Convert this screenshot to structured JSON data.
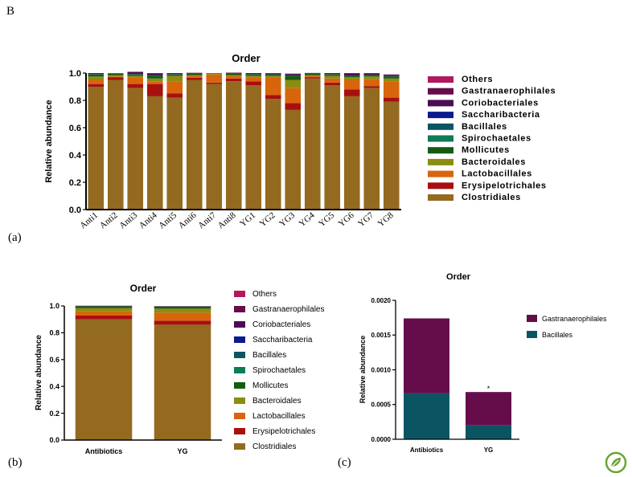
{
  "figure_label": "B",
  "panel_labels": [
    "(a)",
    "(b)",
    "(c)"
  ],
  "colors": {
    "Others": "#b0195f",
    "Gastranaerophilales": "#650d4b",
    "Coriobacteriales": "#4a0f52",
    "Saccharibacteria": "#0a1b8c",
    "Bacillales": "#0b5563",
    "Spirochaetales": "#0f7b57",
    "Mollicutes": "#145c11",
    "Bacteroidales": "#8a8d12",
    "Lactobacillales": "#d8650c",
    "Erysipelotrichales": "#a81010",
    "Clostridiales": "#946a21"
  },
  "logo": {
    "name": "plant-logo-icon",
    "color": "#6aa533"
  },
  "chart_data": [
    {
      "type": "bar",
      "stacked": true,
      "panel": "(a)",
      "title": "Order",
      "xlabel": "",
      "ylabel": "Relative abundance",
      "ylim": [
        0,
        1.0
      ],
      "yticks": [
        "0.0",
        "0.2",
        "0.4",
        "0.6",
        "0.8",
        "1.0"
      ],
      "categories": [
        "Anti1",
        "Anti2",
        "Anti3",
        "Anti4",
        "Anti5",
        "Anti6",
        "Anti7",
        "Anti8",
        "YG1",
        "YG2",
        "YG3",
        "YG4",
        "YG5",
        "YG6",
        "YG7",
        "YG8"
      ],
      "legend_order": [
        "Others",
        "Gastranaerophilales",
        "Coriobacteriales",
        "Saccharibacteria",
        "Bacillales",
        "Spirochaetales",
        "Mollicutes",
        "Bacteroidales",
        "Lactobacillales",
        "Erysipelotrichales",
        "Clostridiales"
      ],
      "series": [
        {
          "name": "Clostridiales",
          "values": [
            0.9,
            0.95,
            0.89,
            0.83,
            0.82,
            0.95,
            0.92,
            0.94,
            0.91,
            0.81,
            0.73,
            0.96,
            0.91,
            0.83,
            0.89,
            0.79
          ]
        },
        {
          "name": "Erysipelotrichales",
          "values": [
            0.02,
            0.02,
            0.03,
            0.09,
            0.03,
            0.015,
            0.01,
            0.02,
            0.03,
            0.03,
            0.05,
            0.01,
            0.02,
            0.05,
            0.015,
            0.03
          ]
        },
        {
          "name": "Lactobacillales",
          "values": [
            0.03,
            0.005,
            0.05,
            0.02,
            0.09,
            0.015,
            0.06,
            0.02,
            0.03,
            0.13,
            0.11,
            0.01,
            0.03,
            0.07,
            0.05,
            0.12
          ]
        },
        {
          "name": "Bacteroidales",
          "values": [
            0.025,
            0.01,
            0.01,
            0.02,
            0.04,
            0.005,
            0.005,
            0.005,
            0.01,
            0.01,
            0.06,
            0.005,
            0.02,
            0.02,
            0.02,
            0.02
          ]
        },
        {
          "name": "Mollicutes",
          "values": [
            0.015,
            0.01,
            0.01,
            0.02,
            0.01,
            0.01,
            0.003,
            0.01,
            0.01,
            0.01,
            0.03,
            0.01,
            0.01,
            0.01,
            0.01,
            0.015
          ]
        },
        {
          "name": "Spirochaetales",
          "values": [
            0,
            0,
            0,
            0,
            0,
            0,
            0,
            0,
            0,
            0,
            0,
            0,
            0,
            0,
            0,
            0
          ]
        },
        {
          "name": "Bacillales",
          "values": [
            0.002,
            0.001,
            0.002,
            0.003,
            0.002,
            0.002,
            0.001,
            0.002,
            0.002,
            0.001,
            0.002,
            0.001,
            0.002,
            0.001,
            0.001,
            0.002
          ]
        },
        {
          "name": "Saccharibacteria",
          "values": [
            0,
            0,
            0,
            0,
            0,
            0,
            0,
            0,
            0,
            0,
            0,
            0,
            0,
            0,
            0,
            0
          ]
        },
        {
          "name": "Coriobacteriales",
          "values": [
            0.005,
            0.003,
            0.015,
            0.015,
            0.005,
            0.003,
            0.001,
            0.003,
            0.005,
            0.005,
            0.01,
            0.004,
            0.005,
            0.015,
            0.01,
            0.01
          ]
        },
        {
          "name": "Gastranaerophilales",
          "values": [
            0.003,
            0.001,
            0.003,
            0.002,
            0.003,
            0.002,
            0,
            0.003,
            0.003,
            0.004,
            0.004,
            0.001,
            0.003,
            0.004,
            0.004,
            0.003
          ]
        },
        {
          "name": "Others",
          "values": [
            0,
            0,
            0,
            0,
            0,
            0,
            0,
            0,
            0,
            0,
            0,
            0,
            0,
            0,
            0,
            0
          ]
        }
      ]
    },
    {
      "type": "bar",
      "stacked": true,
      "panel": "(b)",
      "title": "Order",
      "xlabel": "",
      "ylabel": "Relative abundance",
      "ylim": [
        0,
        1.0
      ],
      "yticks": [
        "0.0",
        "0.2",
        "0.4",
        "0.6",
        "0.8",
        "1.0"
      ],
      "categories": [
        "Antibiotics",
        "YG"
      ],
      "legend_order": [
        "Others",
        "Gastranaerophilales",
        "Coriobacteriales",
        "Saccharibacteria",
        "Bacillales",
        "Spirochaetales",
        "Mollicutes",
        "Bacteroidales",
        "Lactobacillales",
        "Erysipelotrichales",
        "Clostridiales"
      ],
      "series": [
        {
          "name": "Clostridiales",
          "values": [
            0.9,
            0.86
          ]
        },
        {
          "name": "Erysipelotrichales",
          "values": [
            0.03,
            0.03
          ]
        },
        {
          "name": "Lactobacillales",
          "values": [
            0.03,
            0.06
          ]
        },
        {
          "name": "Bacteroidales",
          "values": [
            0.025,
            0.03
          ]
        },
        {
          "name": "Mollicutes",
          "values": [
            0.012,
            0.015
          ]
        },
        {
          "name": "Spirochaetales",
          "values": [
            0,
            0
          ]
        },
        {
          "name": "Bacillales",
          "values": [
            0.001,
            0.0005
          ]
        },
        {
          "name": "Saccharibacteria",
          "values": [
            0,
            0
          ]
        },
        {
          "name": "Coriobacteriales",
          "values": [
            0.003,
            0.003
          ]
        },
        {
          "name": "Gastranaerophilales",
          "values": [
            0.001,
            0.0005
          ]
        },
        {
          "name": "Others",
          "values": [
            0,
            0
          ]
        }
      ]
    },
    {
      "type": "bar",
      "stacked": true,
      "panel": "(c)",
      "title": "Order",
      "xlabel": "",
      "ylabel": "Relative abundance",
      "ylim": [
        0,
        0.002
      ],
      "yticks": [
        "0.0000",
        "0.0005",
        "0.0010",
        "0.0015",
        "0.0020"
      ],
      "categories": [
        "Antibiotics",
        "YG"
      ],
      "legend_order": [
        "Gastranaerophilales",
        "Bacillales"
      ],
      "annotations": [
        {
          "category": "YG",
          "text": "*"
        }
      ],
      "series": [
        {
          "name": "Bacillales",
          "values": [
            0.00066,
            0.0002
          ]
        },
        {
          "name": "Gastranaerophilales",
          "values": [
            0.00108,
            0.00048
          ]
        }
      ]
    }
  ]
}
